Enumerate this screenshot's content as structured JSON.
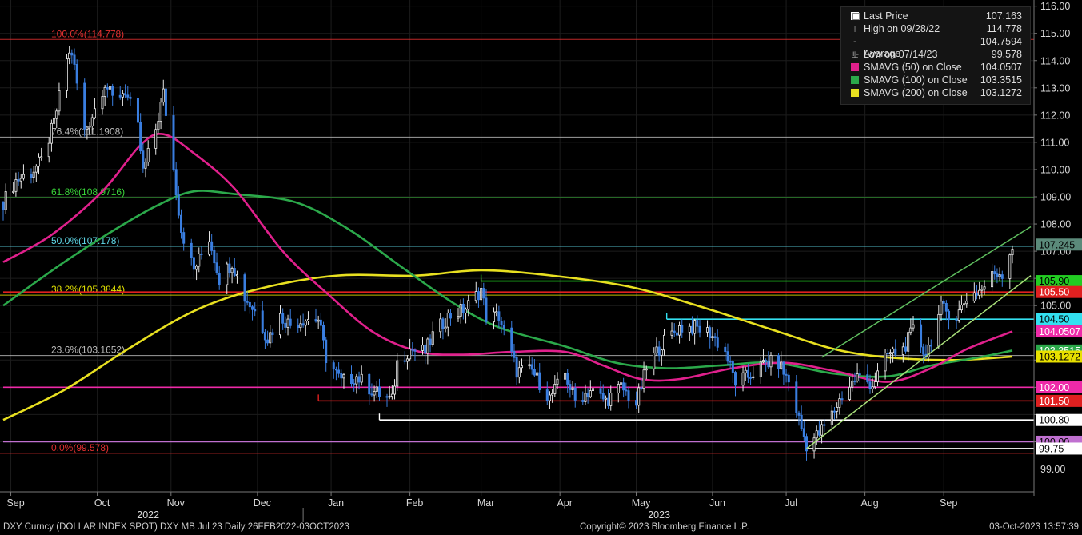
{
  "chart_data": {
    "type": "candlestick",
    "security": "DXY Curncy (DOLLAR INDEX SPOT) DXY MB Jul 23",
    "y_range": [
      98.0,
      116.0
    ],
    "y_ticks": [
      99.0,
      100.0,
      101.0,
      102.0,
      103.0,
      104.0,
      105.0,
      106.0,
      107.0,
      108.0,
      109.0,
      110.0,
      111.0,
      112.0,
      113.0,
      114.0,
      115.0,
      116.0
    ],
    "y_tick_labels": [
      "99.00",
      "",
      "",
      "",
      "",
      "",
      "105.00",
      "",
      "107.00",
      "108.00",
      "109.00",
      "110.00",
      "111.00",
      "112.00",
      "113.00",
      "114.00",
      "115.00",
      "116.00"
    ],
    "x_range": [
      "2022-09-01",
      "2023-10-03"
    ],
    "x_month_labels": [
      {
        "label": "Sep",
        "date": "2022-09-04"
      },
      {
        "label": "Oct",
        "date": "2022-10-08"
      },
      {
        "label": "Nov",
        "date": "2022-11-06"
      },
      {
        "label": "Dec",
        "date": "2022-12-10"
      },
      {
        "label": "Jan",
        "date": "2023-01-08"
      },
      {
        "label": "Feb",
        "date": "2023-02-08"
      },
      {
        "label": "Mar",
        "date": "2023-03-08"
      },
      {
        "label": "Apr",
        "date": "2023-04-08"
      },
      {
        "label": "May",
        "date": "2023-05-08"
      },
      {
        "label": "Jun",
        "date": "2023-06-07"
      },
      {
        "label": "Jul",
        "date": "2023-07-06"
      },
      {
        "label": "Aug",
        "date": "2023-08-06"
      },
      {
        "label": "Sep",
        "date": "2023-09-06"
      }
    ],
    "x_year_labels": [
      {
        "label": "2022",
        "date": "2022-10-28"
      },
      {
        "label": "2023",
        "date": "2023-05-17"
      }
    ],
    "year_divider_date": "2022-12-28",
    "price_path": [
      {
        "date": "2022-09-01",
        "close": 108.8
      },
      {
        "date": "2022-09-06",
        "close": 109.6
      },
      {
        "date": "2022-09-12",
        "close": 109.9
      },
      {
        "date": "2022-09-16",
        "close": 110.3
      },
      {
        "date": "2022-09-21",
        "close": 111.7
      },
      {
        "date": "2022-09-26",
        "close": 114.1
      },
      {
        "date": "2022-09-28",
        "close": 114.3
      },
      {
        "date": "2022-10-03",
        "close": 111.4
      },
      {
        "date": "2022-10-06",
        "close": 112.0
      },
      {
        "date": "2022-10-11",
        "close": 113.2
      },
      {
        "date": "2022-10-14",
        "close": 112.6
      },
      {
        "date": "2022-10-19",
        "close": 112.9
      },
      {
        "date": "2022-10-24",
        "close": 111.5
      },
      {
        "date": "2022-10-26",
        "close": 109.9
      },
      {
        "date": "2022-10-31",
        "close": 111.5
      },
      {
        "date": "2022-11-03",
        "close": 112.8
      },
      {
        "date": "2022-11-07",
        "close": 110.0
      },
      {
        "date": "2022-11-10",
        "close": 107.8
      },
      {
        "date": "2022-11-15",
        "close": 106.3
      },
      {
        "date": "2022-11-21",
        "close": 107.5
      },
      {
        "date": "2022-11-25",
        "close": 106.0
      },
      {
        "date": "2022-11-30",
        "close": 106.6
      },
      {
        "date": "2022-12-05",
        "close": 105.3
      },
      {
        "date": "2022-12-09",
        "close": 104.8
      },
      {
        "date": "2022-12-14",
        "close": 103.8
      },
      {
        "date": "2022-12-19",
        "close": 104.6
      },
      {
        "date": "2022-12-23",
        "close": 104.3
      },
      {
        "date": "2022-12-28",
        "close": 104.5
      },
      {
        "date": "2023-01-03",
        "close": 104.5
      },
      {
        "date": "2023-01-06",
        "close": 103.1
      },
      {
        "date": "2023-01-12",
        "close": 102.2
      },
      {
        "date": "2023-01-18",
        "close": 102.4
      },
      {
        "date": "2023-01-24",
        "close": 101.9
      },
      {
        "date": "2023-02-01",
        "close": 101.5
      },
      {
        "date": "2023-02-03",
        "close": 102.9
      },
      {
        "date": "2023-02-08",
        "close": 103.4
      },
      {
        "date": "2023-02-14",
        "close": 103.3
      },
      {
        "date": "2023-02-17",
        "close": 103.9
      },
      {
        "date": "2023-02-23",
        "close": 104.6
      },
      {
        "date": "2023-03-02",
        "close": 104.9
      },
      {
        "date": "2023-03-08",
        "close": 105.6
      },
      {
        "date": "2023-03-10",
        "close": 104.6
      },
      {
        "date": "2023-03-15",
        "close": 104.6
      },
      {
        "date": "2023-03-22",
        "close": 102.6
      },
      {
        "date": "2023-03-28",
        "close": 102.6
      },
      {
        "date": "2023-04-04",
        "close": 101.6
      },
      {
        "date": "2023-04-10",
        "close": 102.5
      },
      {
        "date": "2023-04-14",
        "close": 101.5
      },
      {
        "date": "2023-04-20",
        "close": 101.9
      },
      {
        "date": "2023-04-26",
        "close": 101.5
      },
      {
        "date": "2023-05-02",
        "close": 102.0
      },
      {
        "date": "2023-05-08",
        "close": 101.4
      },
      {
        "date": "2023-05-12",
        "close": 102.7
      },
      {
        "date": "2023-05-18",
        "close": 103.6
      },
      {
        "date": "2023-05-25",
        "close": 104.2
      },
      {
        "date": "2023-05-31",
        "close": 104.2
      },
      {
        "date": "2023-06-06",
        "close": 104.0
      },
      {
        "date": "2023-06-12",
        "close": 103.3
      },
      {
        "date": "2023-06-16",
        "close": 102.2
      },
      {
        "date": "2023-06-21",
        "close": 102.4
      },
      {
        "date": "2023-06-28",
        "close": 102.9
      },
      {
        "date": "2023-07-03",
        "close": 102.9
      },
      {
        "date": "2023-07-07",
        "close": 102.2
      },
      {
        "date": "2023-07-12",
        "close": 100.5
      },
      {
        "date": "2023-07-14",
        "close": 99.9
      },
      {
        "date": "2023-07-19",
        "close": 100.3
      },
      {
        "date": "2023-07-24",
        "close": 101.0
      },
      {
        "date": "2023-07-28",
        "close": 101.7
      },
      {
        "date": "2023-08-03",
        "close": 102.4
      },
      {
        "date": "2023-08-09",
        "close": 102.1
      },
      {
        "date": "2023-08-15",
        "close": 103.2
      },
      {
        "date": "2023-08-21",
        "close": 103.4
      },
      {
        "date": "2023-08-25",
        "close": 104.1
      },
      {
        "date": "2023-08-30",
        "close": 103.2
      },
      {
        "date": "2023-09-05",
        "close": 104.9
      },
      {
        "date": "2023-09-11",
        "close": 104.6
      },
      {
        "date": "2023-09-15",
        "close": 105.3
      },
      {
        "date": "2023-09-21",
        "close": 105.6
      },
      {
        "date": "2023-09-26",
        "close": 106.2
      },
      {
        "date": "2023-09-29",
        "close": 106.2
      },
      {
        "date": "2023-10-03",
        "close": 107.2
      }
    ],
    "sma50": [
      {
        "date": "2022-09-01",
        "value": 106.6
      },
      {
        "date": "2022-09-20",
        "value": 107.6
      },
      {
        "date": "2022-10-10",
        "value": 109.2
      },
      {
        "date": "2022-10-25",
        "value": 110.9
      },
      {
        "date": "2022-11-03",
        "value": 111.3
      },
      {
        "date": "2022-11-15",
        "value": 110.6
      },
      {
        "date": "2022-12-01",
        "value": 109.3
      },
      {
        "date": "2022-12-20",
        "value": 107.0
      },
      {
        "date": "2023-01-07",
        "value": 105.4
      },
      {
        "date": "2023-01-25",
        "value": 104.0
      },
      {
        "date": "2023-02-12",
        "value": 103.3
      },
      {
        "date": "2023-03-01",
        "value": 103.2
      },
      {
        "date": "2023-03-20",
        "value": 103.3
      },
      {
        "date": "2023-04-10",
        "value": 103.3
      },
      {
        "date": "2023-04-25",
        "value": 102.8
      },
      {
        "date": "2023-05-10",
        "value": 102.3
      },
      {
        "date": "2023-05-25",
        "value": 102.3
      },
      {
        "date": "2023-06-15",
        "value": 102.7
      },
      {
        "date": "2023-07-05",
        "value": 102.9
      },
      {
        "date": "2023-07-25",
        "value": 102.6
      },
      {
        "date": "2023-08-15",
        "value": 102.2
      },
      {
        "date": "2023-09-01",
        "value": 102.7
      },
      {
        "date": "2023-09-15",
        "value": 103.4
      },
      {
        "date": "2023-10-03",
        "value": 104.0507
      }
    ],
    "sma100": [
      {
        "date": "2022-09-01",
        "value": 105.0
      },
      {
        "date": "2022-09-25",
        "value": 106.6
      },
      {
        "date": "2022-10-15",
        "value": 107.8
      },
      {
        "date": "2022-11-01",
        "value": 108.7
      },
      {
        "date": "2022-11-15",
        "value": 109.2
      },
      {
        "date": "2022-12-01",
        "value": 109.1
      },
      {
        "date": "2022-12-25",
        "value": 108.8
      },
      {
        "date": "2023-01-15",
        "value": 107.8
      },
      {
        "date": "2023-02-05",
        "value": 106.4
      },
      {
        "date": "2023-02-25",
        "value": 105.1
      },
      {
        "date": "2023-03-15",
        "value": 104.2
      },
      {
        "date": "2023-04-10",
        "value": 103.5
      },
      {
        "date": "2023-04-30",
        "value": 102.9
      },
      {
        "date": "2023-05-20",
        "value": 102.7
      },
      {
        "date": "2023-06-10",
        "value": 102.8
      },
      {
        "date": "2023-07-01",
        "value": 102.9
      },
      {
        "date": "2023-07-25",
        "value": 102.5
      },
      {
        "date": "2023-08-15",
        "value": 102.4
      },
      {
        "date": "2023-09-01",
        "value": 102.8
      },
      {
        "date": "2023-09-20",
        "value": 103.1
      },
      {
        "date": "2023-10-03",
        "value": 103.3515
      }
    ],
    "sma200": [
      {
        "date": "2022-09-01",
        "value": 100.8
      },
      {
        "date": "2022-09-25",
        "value": 101.9
      },
      {
        "date": "2022-10-20",
        "value": 103.4
      },
      {
        "date": "2022-11-15",
        "value": 104.8
      },
      {
        "date": "2022-12-10",
        "value": 105.6
      },
      {
        "date": "2023-01-10",
        "value": 106.1
      },
      {
        "date": "2023-02-10",
        "value": 106.1
      },
      {
        "date": "2023-03-08",
        "value": 106.3
      },
      {
        "date": "2023-04-05",
        "value": 106.1
      },
      {
        "date": "2023-05-05",
        "value": 105.7
      },
      {
        "date": "2023-06-01",
        "value": 105.0
      },
      {
        "date": "2023-07-01",
        "value": 104.1
      },
      {
        "date": "2023-07-25",
        "value": 103.4
      },
      {
        "date": "2023-08-15",
        "value": 103.1
      },
      {
        "date": "2023-09-10",
        "value": 103.0
      },
      {
        "date": "2023-10-03",
        "value": 103.1272
      }
    ],
    "fib_levels": [
      {
        "label": "100.0%(114.778)",
        "value": 114.778,
        "color": "#e03030"
      },
      {
        "label": "76.4%(111.1908)",
        "value": 111.1908,
        "color": "#bbbbbb"
      },
      {
        "label": "61.8%(108.9716)",
        "value": 108.9716,
        "color": "#39d339"
      },
      {
        "label": "50.0%(107.178)",
        "value": 107.178,
        "color": "#5fd8e8"
      },
      {
        "label": "38.2%(105.3844)",
        "value": 105.3844,
        "color": "#e0e000"
      },
      {
        "label": "23.6%(103.1652)",
        "value": 103.1652,
        "color": "#bbbbbb"
      },
      {
        "label": "0.0%(99.578)",
        "value": 99.578,
        "color": "#e03030"
      }
    ],
    "horizontal_levels": [
      {
        "label": "105.90",
        "value": 105.9,
        "color": "#22cc22",
        "start": "2023-03-08"
      },
      {
        "label": "105.50",
        "value": 105.5,
        "color": "#e02020",
        "start": "2022-09-01"
      },
      {
        "label": "104.50",
        "value": 104.5,
        "color": "#33e0f0",
        "start": "2023-05-20"
      },
      {
        "label": "102.00",
        "value": 102.0,
        "color": "#ee2aa8",
        "start": "2022-09-01"
      },
      {
        "label": "101.50",
        "value": 101.5,
        "color": "#e02020",
        "start": "2023-01-03"
      },
      {
        "label": "100.80",
        "value": 100.8,
        "color": "#ffffff",
        "start": "2023-01-27"
      },
      {
        "label": "100.00",
        "value": 100.0,
        "color": "#c070d0",
        "start": "2022-09-01"
      },
      {
        "label": "99.75",
        "value": 99.75,
        "color": "#ffffff",
        "start": "2023-07-14"
      }
    ],
    "channel_lines": [
      {
        "start": {
          "date": "2023-07-14",
          "value": 99.75
        },
        "end": {
          "date": "2023-10-03",
          "value": 106.1
        },
        "color": "#a9e07a"
      },
      {
        "start": {
          "date": "2023-07-20",
          "value": 103.1
        },
        "end": {
          "date": "2023-10-03",
          "value": 107.9
        },
        "color": "#5fbf5f"
      }
    ],
    "axis_tags": [
      {
        "label": "107.245",
        "value": 107.245,
        "bg": "#5b8a7a",
        "fg": "#000000"
      },
      {
        "label": "105.90",
        "value": 105.9,
        "bg": "#22cc22",
        "fg": "#000000"
      },
      {
        "label": "105.50",
        "value": 105.5,
        "bg": "#e02020",
        "fg": "#ffffff"
      },
      {
        "label": "104.50",
        "value": 104.5,
        "bg": "#33e0f0",
        "fg": "#000000"
      },
      {
        "label": "104.0507",
        "value": 104.0507,
        "bg": "#ee2aa8",
        "fg": "#ffffff"
      },
      {
        "label": "103.3515",
        "value": 103.3515,
        "bg": "#2ba84a",
        "fg": "#ffffff"
      },
      {
        "label": "103.1272",
        "value": 103.1272,
        "bg": "#e8e000",
        "fg": "#000000"
      },
      {
        "label": "102.00",
        "value": 102.0,
        "bg": "#ee2aa8",
        "fg": "#ffffff"
      },
      {
        "label": "101.50",
        "value": 101.5,
        "bg": "#e02020",
        "fg": "#ffffff"
      },
      {
        "label": "100.80",
        "value": 100.8,
        "bg": "#ffffff",
        "fg": "#000000"
      },
      {
        "label": "100.00",
        "value": 100.0,
        "bg": "#c070d0",
        "fg": "#000000"
      },
      {
        "label": "99.75",
        "value": 99.75,
        "bg": "#ffffff",
        "fg": "#000000"
      }
    ],
    "colors": {
      "up_candle": "#e8e8e8",
      "down_candle": "#3a7ee0",
      "sma50": "#e0208c",
      "sma100": "#2ba84a",
      "sma200": "#e8e020",
      "grid": "#1c1c1c",
      "axis_text": "#d8d8d8"
    },
    "legend_position": "top-right",
    "grid": true
  },
  "legend": {
    "rows": [
      {
        "label": "Last Price",
        "value": "107.163",
        "color": "#ffffff",
        "glyph": "square"
      },
      {
        "label": "High on 09/28/22",
        "value": "114.778",
        "color": "#aaaaaa",
        "glyph": "⊤"
      },
      {
        "label": "Average",
        "value": "104.7594",
        "color": "#aaaaaa",
        "glyph": "-+-"
      },
      {
        "label": "Low on 07/14/23",
        "value": "99.578",
        "color": "#aaaaaa",
        "glyph": "⊥"
      },
      {
        "label": "SMAVG (50)  on Close",
        "value": "104.0507",
        "color": "#e0208c",
        "glyph": "square"
      },
      {
        "label": "SMAVG (100)  on Close",
        "value": "103.3515",
        "color": "#2ba84a",
        "glyph": "square"
      },
      {
        "label": "SMAVG (200)  on Close",
        "value": "103.1272",
        "color": "#e8e020",
        "glyph": "square"
      }
    ]
  },
  "footer": {
    "left": "DXY Curncy (DOLLAR INDEX SPOT) DXY MB Jul 23   Daily 26FEB2022-03OCT2023",
    "center": "Copyright© 2023 Bloomberg Finance L.P.",
    "right": "03-Oct-2023 13:57:39"
  }
}
